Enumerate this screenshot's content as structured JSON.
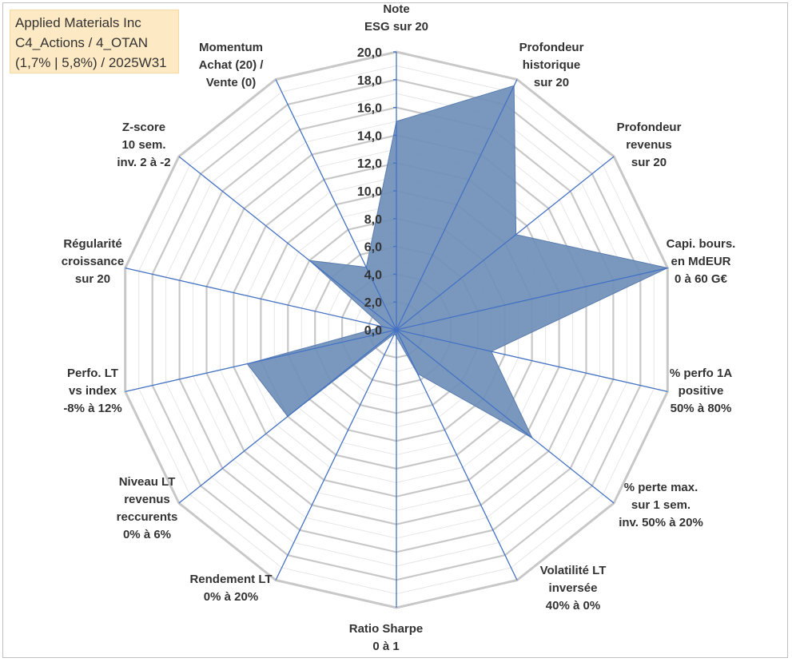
{
  "title_box": {
    "line1": "Applied Materials Inc",
    "line2": "C4_Actions / 4_OTAN",
    "line3": "(1,7% | 5,8%) / 2025W31"
  },
  "chart_data": {
    "type": "radar",
    "title": "",
    "rlim": [
      0,
      20
    ],
    "ticks": [
      0,
      2,
      4,
      6,
      8,
      10,
      12,
      14,
      16,
      18,
      20
    ],
    "tick_labels": [
      "0,0",
      "2,0",
      "4,0",
      "6,0",
      "8,0",
      "10,0",
      "12,0",
      "14,0",
      "16,0",
      "18,0",
      "20,0"
    ],
    "grid": true,
    "fill_color": "#6f8fb9",
    "line_color": "#4472c4",
    "grid_color": "#c8c8c8",
    "axes": [
      {
        "label": [
          "Note",
          "ESG sur 20"
        ],
        "value": 15.0
      },
      {
        "label": [
          "Profondeur",
          "historique",
          "sur 20"
        ],
        "value": 19.5
      },
      {
        "label": [
          "Profondeur",
          "revenus",
          "sur 20"
        ],
        "value": 11.0
      },
      {
        "label": [
          "Capi. bours.",
          "en MdEUR",
          "0 à 60 G€"
        ],
        "value": 20.0
      },
      {
        "label": [
          "% perfo 1A",
          "positive",
          "50% à 80%"
        ],
        "value": 7.0
      },
      {
        "label": [
          "% perte max.",
          "sur 1 sem.",
          "inv. 50% à 20%"
        ],
        "value": 12.5
      },
      {
        "label": [
          "Volatilité LT",
          "inversée",
          "40% à 0%"
        ],
        "value": 3.5
      },
      {
        "label": [
          "Ratio Sharpe",
          "0 à 1"
        ],
        "value": 0.5
      },
      {
        "label": [
          "Rendement LT",
          "0% à 20%"
        ],
        "value": 0.3
      },
      {
        "label": [
          "Niveau LT",
          "revenus",
          "reccurents",
          "0% à 6%"
        ],
        "value": 10.0
      },
      {
        "label": [
          "Perfo. LT",
          "vs index",
          "-8% à 12%"
        ],
        "value": 11.0
      },
      {
        "label": [
          "Régularité",
          "croissance",
          "sur 20"
        ],
        "value": 1.0
      },
      {
        "label": [
          "Z-score",
          "10 sem.",
          "inv. 2 à -2"
        ],
        "value": 8.0
      },
      {
        "label": [
          "Momentum",
          "Achat (20) /",
          "Vente (0)"
        ],
        "value": 5.0
      }
    ]
  }
}
